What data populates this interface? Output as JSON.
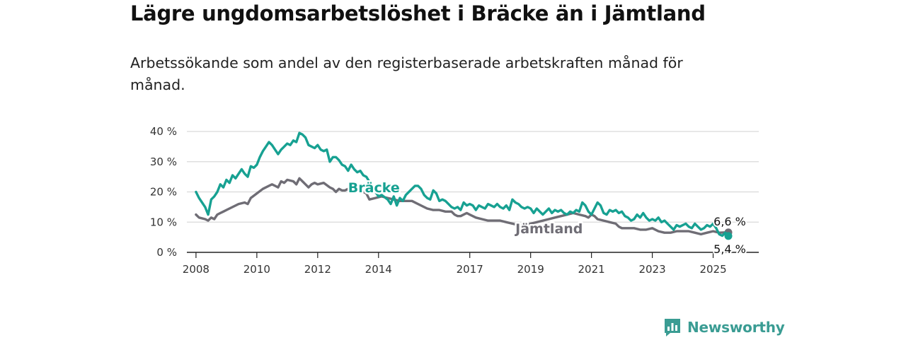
{
  "header": {
    "title": "Lägre ungdomsarbetslöshet i Bräcke än i Jämtland",
    "subtitle": "Arbetssökande som andel av den registerbaserade arbetskraften månad för månad."
  },
  "brand": {
    "name": "Newsworthy",
    "color": "#3a9c93"
  },
  "chart_data": {
    "type": "line",
    "title": "Lägre ungdomsarbetslöshet i Bräcke än i Jämtland",
    "subtitle": "Arbetssökande som andel av den registerbaserade arbetskraften månad för månad.",
    "xlabel": "",
    "ylabel": "",
    "xlim": [
      2007.7,
      2026.5
    ],
    "ylim": [
      0,
      40
    ],
    "x_ticks": [
      {
        "value": 2008,
        "label": "2008"
      },
      {
        "value": 2010,
        "label": "2010"
      },
      {
        "value": 2012,
        "label": "2012"
      },
      {
        "value": 2014,
        "label": "2014"
      },
      {
        "value": 2017,
        "label": "2017"
      },
      {
        "value": 2019,
        "label": "2019"
      },
      {
        "value": 2021,
        "label": "2021"
      },
      {
        "value": 2023,
        "label": "2023"
      },
      {
        "value": 2025,
        "label": "2025"
      }
    ],
    "y_ticks": [
      {
        "value": 0,
        "label": "0 %"
      },
      {
        "value": 10,
        "label": "10 %"
      },
      {
        "value": 20,
        "label": "20 %"
      },
      {
        "value": 30,
        "label": "30 %"
      },
      {
        "value": 40,
        "label": "40 %"
      }
    ],
    "grid": true,
    "legend": "direct labels on lines",
    "series": [
      {
        "name": "Bräcke",
        "color": "#17a192",
        "label_at": [
          2013.0,
          21.5
        ],
        "end_label": "5,4 %",
        "points": [
          [
            2008.0,
            20.0
          ],
          [
            2008.1,
            18.0
          ],
          [
            2008.2,
            16.5
          ],
          [
            2008.3,
            15.0
          ],
          [
            2008.4,
            12.5
          ],
          [
            2008.5,
            17.5
          ],
          [
            2008.6,
            18.5
          ],
          [
            2008.7,
            20.0
          ],
          [
            2008.8,
            22.5
          ],
          [
            2008.9,
            21.5
          ],
          [
            2009.0,
            24.0
          ],
          [
            2009.1,
            23.0
          ],
          [
            2009.2,
            25.5
          ],
          [
            2009.3,
            24.5
          ],
          [
            2009.4,
            26.0
          ],
          [
            2009.5,
            27.5
          ],
          [
            2009.6,
            26.0
          ],
          [
            2009.7,
            25.0
          ],
          [
            2009.8,
            28.5
          ],
          [
            2009.9,
            28.0
          ],
          [
            2010.0,
            29.0
          ],
          [
            2010.1,
            31.5
          ],
          [
            2010.2,
            33.5
          ],
          [
            2010.3,
            35.0
          ],
          [
            2010.4,
            36.5
          ],
          [
            2010.5,
            35.5
          ],
          [
            2010.6,
            34.0
          ],
          [
            2010.7,
            32.5
          ],
          [
            2010.8,
            34.0
          ],
          [
            2010.9,
            35.0
          ],
          [
            2011.0,
            36.0
          ],
          [
            2011.1,
            35.5
          ],
          [
            2011.2,
            37.0
          ],
          [
            2011.3,
            36.5
          ],
          [
            2011.4,
            39.5
          ],
          [
            2011.5,
            39.0
          ],
          [
            2011.6,
            38.0
          ],
          [
            2011.7,
            35.5
          ],
          [
            2011.8,
            35.0
          ],
          [
            2011.9,
            34.5
          ],
          [
            2012.0,
            35.5
          ],
          [
            2012.1,
            34.0
          ],
          [
            2012.2,
            33.5
          ],
          [
            2012.3,
            34.0
          ],
          [
            2012.4,
            30.0
          ],
          [
            2012.5,
            31.5
          ],
          [
            2012.6,
            31.5
          ],
          [
            2012.7,
            30.5
          ],
          [
            2012.8,
            29.0
          ],
          [
            2012.9,
            28.5
          ],
          [
            2013.0,
            27.0
          ],
          [
            2013.1,
            29.0
          ],
          [
            2013.2,
            27.5
          ],
          [
            2013.3,
            26.5
          ],
          [
            2013.4,
            27.0
          ],
          [
            2013.5,
            25.5
          ],
          [
            2013.6,
            25.0
          ],
          [
            2013.9,
            20.0
          ],
          [
            2014.0,
            18.5
          ],
          [
            2014.1,
            19.0
          ],
          [
            2014.3,
            17.5
          ],
          [
            2014.4,
            16.0
          ],
          [
            2014.5,
            18.5
          ],
          [
            2014.6,
            15.5
          ],
          [
            2014.7,
            18.0
          ],
          [
            2014.8,
            17.0
          ],
          [
            2014.9,
            19.0
          ],
          [
            2015.0,
            20.0
          ],
          [
            2015.1,
            21.0
          ],
          [
            2015.2,
            22.0
          ],
          [
            2015.3,
            22.0
          ],
          [
            2015.4,
            21.0
          ],
          [
            2015.5,
            19.0
          ],
          [
            2015.6,
            18.0
          ],
          [
            2015.7,
            17.5
          ],
          [
            2015.8,
            20.5
          ],
          [
            2015.9,
            19.5
          ],
          [
            2016.0,
            17.0
          ],
          [
            2016.1,
            17.5
          ],
          [
            2016.2,
            17.0
          ],
          [
            2016.3,
            16.0
          ],
          [
            2016.4,
            15.0
          ],
          [
            2016.5,
            14.5
          ],
          [
            2016.6,
            15.0
          ],
          [
            2016.7,
            14.0
          ],
          [
            2016.8,
            16.5
          ],
          [
            2016.9,
            15.5
          ],
          [
            2017.0,
            16.0
          ],
          [
            2017.1,
            15.5
          ],
          [
            2017.2,
            14.0
          ],
          [
            2017.3,
            15.5
          ],
          [
            2017.4,
            15.0
          ],
          [
            2017.5,
            14.5
          ],
          [
            2017.6,
            16.0
          ],
          [
            2017.7,
            15.5
          ],
          [
            2017.8,
            15.0
          ],
          [
            2017.9,
            16.0
          ],
          [
            2018.0,
            15.0
          ],
          [
            2018.1,
            14.5
          ],
          [
            2018.2,
            15.5
          ],
          [
            2018.3,
            14.0
          ],
          [
            2018.4,
            17.5
          ],
          [
            2018.5,
            16.5
          ],
          [
            2018.6,
            16.0
          ],
          [
            2018.7,
            15.0
          ],
          [
            2018.8,
            14.5
          ],
          [
            2018.9,
            15.0
          ],
          [
            2019.0,
            14.5
          ],
          [
            2019.1,
            13.0
          ],
          [
            2019.2,
            14.5
          ],
          [
            2019.3,
            13.5
          ],
          [
            2019.4,
            12.5
          ],
          [
            2019.5,
            13.5
          ],
          [
            2019.6,
            14.5
          ],
          [
            2019.7,
            13.0
          ],
          [
            2019.8,
            14.0
          ],
          [
            2019.9,
            13.5
          ],
          [
            2020.0,
            14.0
          ],
          [
            2020.1,
            13.0
          ],
          [
            2020.2,
            12.5
          ],
          [
            2020.3,
            13.5
          ],
          [
            2020.4,
            13.0
          ],
          [
            2020.5,
            14.0
          ],
          [
            2020.6,
            13.5
          ],
          [
            2020.7,
            16.5
          ],
          [
            2020.8,
            15.5
          ],
          [
            2020.9,
            13.5
          ],
          [
            2021.0,
            12.5
          ],
          [
            2021.1,
            14.5
          ],
          [
            2021.2,
            16.5
          ],
          [
            2021.3,
            15.5
          ],
          [
            2021.4,
            13.0
          ],
          [
            2021.5,
            12.5
          ],
          [
            2021.6,
            14.0
          ],
          [
            2021.7,
            13.5
          ],
          [
            2021.8,
            14.0
          ],
          [
            2021.9,
            13.0
          ],
          [
            2022.0,
            13.5
          ],
          [
            2022.1,
            12.0
          ],
          [
            2022.2,
            11.5
          ],
          [
            2022.3,
            10.5
          ],
          [
            2022.4,
            11.0
          ],
          [
            2022.5,
            12.5
          ],
          [
            2022.6,
            11.5
          ],
          [
            2022.7,
            13.0
          ],
          [
            2022.8,
            11.5
          ],
          [
            2022.9,
            10.5
          ],
          [
            2023.0,
            11.0
          ],
          [
            2023.1,
            10.5
          ],
          [
            2023.2,
            11.5
          ],
          [
            2023.3,
            10.0
          ],
          [
            2023.4,
            10.5
          ],
          [
            2023.5,
            9.5
          ],
          [
            2023.6,
            8.5
          ],
          [
            2023.7,
            7.5
          ],
          [
            2023.8,
            9.0
          ],
          [
            2023.9,
            8.5
          ],
          [
            2024.0,
            9.0
          ],
          [
            2024.1,
            9.5
          ],
          [
            2024.2,
            8.5
          ],
          [
            2024.3,
            8.0
          ],
          [
            2024.4,
            9.5
          ],
          [
            2024.5,
            8.5
          ],
          [
            2024.6,
            7.5
          ],
          [
            2024.7,
            8.0
          ],
          [
            2024.8,
            9.0
          ],
          [
            2024.9,
            8.5
          ],
          [
            2025.0,
            9.5
          ],
          [
            2025.1,
            8.0
          ],
          [
            2025.2,
            6.0
          ],
          [
            2025.3,
            5.5
          ],
          [
            2025.4,
            6.5
          ],
          [
            2025.5,
            5.4
          ]
        ]
      },
      {
        "name": "Jämtland",
        "color": "#6f6d75",
        "label_at": [
          2018.5,
          8.0
        ],
        "end_label": "6,6 %",
        "points": [
          [
            2008.0,
            12.5
          ],
          [
            2008.1,
            11.5
          ],
          [
            2008.3,
            11.0
          ],
          [
            2008.4,
            10.5
          ],
          [
            2008.5,
            11.5
          ],
          [
            2008.6,
            11.0
          ],
          [
            2008.7,
            12.5
          ],
          [
            2008.8,
            13.0
          ],
          [
            2008.9,
            13.5
          ],
          [
            2009.0,
            14.0
          ],
          [
            2009.2,
            15.0
          ],
          [
            2009.4,
            16.0
          ],
          [
            2009.6,
            16.5
          ],
          [
            2009.7,
            16.0
          ],
          [
            2009.8,
            18.0
          ],
          [
            2010.0,
            19.5
          ],
          [
            2010.2,
            21.0
          ],
          [
            2010.4,
            22.0
          ],
          [
            2010.5,
            22.5
          ],
          [
            2010.6,
            22.0
          ],
          [
            2010.7,
            21.5
          ],
          [
            2010.8,
            23.5
          ],
          [
            2010.9,
            23.0
          ],
          [
            2011.0,
            24.0
          ],
          [
            2011.2,
            23.5
          ],
          [
            2011.3,
            22.5
          ],
          [
            2011.4,
            24.5
          ],
          [
            2011.5,
            23.5
          ],
          [
            2011.6,
            22.5
          ],
          [
            2011.7,
            21.5
          ],
          [
            2011.8,
            22.5
          ],
          [
            2011.9,
            23.0
          ],
          [
            2012.0,
            22.5
          ],
          [
            2012.2,
            23.0
          ],
          [
            2012.4,
            21.5
          ],
          [
            2012.5,
            21.0
          ],
          [
            2012.6,
            20.0
          ],
          [
            2012.7,
            21.0
          ],
          [
            2012.8,
            20.5
          ],
          [
            2012.9,
            20.5
          ],
          [
            2013.0,
            21.0
          ],
          [
            2013.2,
            21.0
          ],
          [
            2013.4,
            20.5
          ],
          [
            2013.6,
            19.5
          ],
          [
            2013.7,
            17.5
          ],
          [
            2013.9,
            18.0
          ],
          [
            2014.1,
            18.5
          ],
          [
            2014.3,
            18.0
          ],
          [
            2014.5,
            17.5
          ],
          [
            2014.7,
            17.0
          ],
          [
            2014.9,
            17.0
          ],
          [
            2015.1,
            17.0
          ],
          [
            2015.3,
            16.0
          ],
          [
            2015.5,
            15.0
          ],
          [
            2015.6,
            14.5
          ],
          [
            2015.8,
            14.0
          ],
          [
            2016.0,
            14.0
          ],
          [
            2016.2,
            13.5
          ],
          [
            2016.4,
            13.5
          ],
          [
            2016.5,
            12.5
          ],
          [
            2016.6,
            12.0
          ],
          [
            2016.7,
            12.0
          ],
          [
            2016.9,
            13.0
          ],
          [
            2017.0,
            12.5
          ],
          [
            2017.2,
            11.5
          ],
          [
            2017.4,
            11.0
          ],
          [
            2017.6,
            10.5
          ],
          [
            2017.8,
            10.5
          ],
          [
            2018.0,
            10.5
          ],
          [
            2018.2,
            10.0
          ],
          [
            2018.4,
            9.5
          ],
          [
            2018.6,
            9.0
          ],
          [
            2018.8,
            9.0
          ],
          [
            2019.0,
            9.5
          ],
          [
            2019.2,
            10.0
          ],
          [
            2019.4,
            10.5
          ],
          [
            2019.6,
            11.0
          ],
          [
            2019.8,
            11.5
          ],
          [
            2020.0,
            12.0
          ],
          [
            2020.2,
            12.5
          ],
          [
            2020.4,
            13.0
          ],
          [
            2020.6,
            12.5
          ],
          [
            2020.8,
            12.0
          ],
          [
            2020.9,
            11.5
          ],
          [
            2021.0,
            12.5
          ],
          [
            2021.1,
            12.0
          ],
          [
            2021.2,
            11.0
          ],
          [
            2021.4,
            10.5
          ],
          [
            2021.6,
            10.0
          ],
          [
            2021.8,
            9.5
          ],
          [
            2021.9,
            8.5
          ],
          [
            2022.0,
            8.0
          ],
          [
            2022.2,
            8.0
          ],
          [
            2022.4,
            8.0
          ],
          [
            2022.6,
            7.5
          ],
          [
            2022.8,
            7.5
          ],
          [
            2023.0,
            8.0
          ],
          [
            2023.2,
            7.0
          ],
          [
            2023.4,
            6.5
          ],
          [
            2023.6,
            6.5
          ],
          [
            2023.8,
            7.0
          ],
          [
            2024.0,
            7.0
          ],
          [
            2024.2,
            7.0
          ],
          [
            2024.4,
            6.5
          ],
          [
            2024.6,
            6.0
          ],
          [
            2024.8,
            6.5
          ],
          [
            2025.0,
            7.0
          ],
          [
            2025.2,
            6.5
          ],
          [
            2025.4,
            6.6
          ],
          [
            2025.5,
            6.6
          ]
        ]
      }
    ]
  }
}
